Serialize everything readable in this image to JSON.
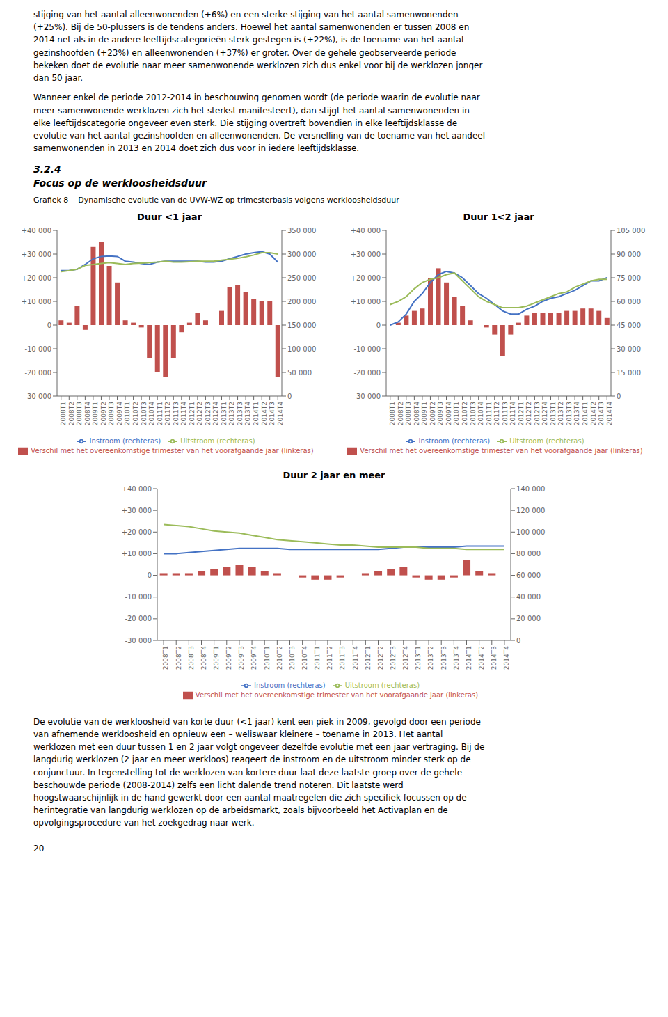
{
  "title": "Grafiek 8    Dynamische evolutie van de UVW-WZ op trimesterbasis volgens werkloosheidsduur",
  "annotations": [
    "stijging van het aantal alleenwonenden (+6%) en een sterke stijging van het aantal samenwonenden\n(+25%). Bij de 50-plussers is de tendens anders. Hoewel het aantal samenwonenden er tussen 2008 en\n2014 net als in de andere leeftijdscategorieën sterk gestegen is (+22%), is de toename van het aantal\ngezinshoofden (+23%) en alleenwonenden (+37%) er groter. Over de gehele geobserveerde periode\nbekeken doet de evolutie naar meer samenwonende werklozen zich dus enkel voor bij de werklozen jonger\ndan 50 jaar.",
    "Wanneer enkel de periode 2012-2014 in beschouwing genomen wordt (de periode waarin de evolutie naar\nmeer samenwonende werklozen zich het sterkst manifesteert), dan stijgt het aantal samenwonenden in\nelke leeftijdscategorie ongeveer even sterk. Die stijging overtreft bovendien in elke leeftijdsklasse de\nevolutie van het aantal gezinshoofden en alleenwonenden. De versnelling van de toename van het aandeel\nsamenwonenden in 2013 en 2014 doet zich dus voor in iedere leeftijdsklasse.",
    "3.2.4",
    "Focus op de werkloosheidsduur",
    "De evolutie van de werkloosheid van korte duur (<1 jaar) kent een piek in 2009, gevolgd door een periode\nvan afnemende werkloosheid en opnieuw een – weliswaar kleinere – toename in 2013. Het aantal\nwerklozen met een duur tussen 1 en 2 jaar volgt ongeveer dezelfde evolutie met een jaar vertraging. Bij de\nlangdurig werklozen (2 jaar en meer werkloos) reageert de instroom en de uitstroom minder sterk op de\nconjunctuur. In tegenstelling tot de werklozen van kortere duur laat deze laatste groep over de gehele\nbeschouwde periode (2008-2014) zelfs een licht dalende trend noteren. Dit laatste werd\nhoogstwaarschijnlijk in de hand gewerkt door een aantal maatregelen die zich specifiek focussen op de\nherintegratie van langdurig werklozen op de arbeidsmarkt, zoals bijvoorbeeld het Activaplan en de\nopvolgingsprocedure van het zoekgedrag naar werk.",
    "20"
  ],
  "chart_data": [
    {
      "type": "bar",
      "title": "Duur <1 jaar",
      "categories": [
        "2008T1",
        "2008T2",
        "2008T3",
        "2008T4",
        "2009T1",
        "2009T2",
        "2009T3",
        "2009T4",
        "2010T1",
        "2010T2",
        "2010T3",
        "2010T4",
        "2011T1",
        "2011T2",
        "2011T3",
        "2011T4",
        "2012T1",
        "2012T2",
        "2012T3",
        "2012T4",
        "2013T1",
        "2013T2",
        "2013T3",
        "2013T4",
        "2014T1",
        "2014T2",
        "2014T3",
        "2014T4"
      ],
      "series": [
        {
          "name": "Verschil met het overeenkomstige trimester van het voorafgaande jaar (linkeras)",
          "type": "bar",
          "color": "#c0504d",
          "values": [
            2000,
            1000,
            8000,
            -2000,
            33000,
            35000,
            25000,
            18000,
            2000,
            1000,
            -1000,
            -14000,
            -20000,
            -22000,
            -14000,
            -3000,
            1000,
            5000,
            2000,
            0,
            6000,
            16000,
            17000,
            14000,
            11000,
            10000,
            10000,
            -22000
          ]
        },
        {
          "name": "Instroom (rechteras)",
          "type": "line",
          "axis": "y2",
          "color": "#4472c4",
          "values": [
            265000,
            265000,
            268000,
            278000,
            290000,
            295000,
            296000,
            295000,
            285000,
            283000,
            280000,
            278000,
            283000,
            285000,
            285000,
            285000,
            285000,
            285000,
            283000,
            283000,
            285000,
            290000,
            295000,
            300000,
            303000,
            305000,
            300000,
            283000
          ]
        },
        {
          "name": "Uitstroom (rechteras)",
          "type": "line",
          "axis": "y2",
          "color": "#9bbb59",
          "values": [
            263000,
            265000,
            268000,
            276000,
            278000,
            280000,
            282000,
            280000,
            278000,
            280000,
            281000,
            282000,
            283000,
            285000,
            283000,
            283000,
            284000,
            285000,
            285000,
            285000,
            287000,
            289000,
            291000,
            294000,
            298000,
            303000,
            303000,
            300000
          ]
        }
      ],
      "ylim": [
        -30000,
        40000
      ],
      "yticks": [
        {
          "value": -30000,
          "label": "-30 000"
        },
        {
          "value": -20000,
          "label": "-20 000"
        },
        {
          "value": -10000,
          "label": "-10 000"
        },
        0,
        {
          "value": 10000,
          "label": "+10 000"
        },
        {
          "value": 20000,
          "label": "+20 000"
        },
        {
          "value": 30000,
          "label": "+30 000"
        },
        {
          "value": 40000,
          "label": "+40 000"
        }
      ],
      "y2lim": [
        0,
        350000
      ],
      "y2ticks": [
        0,
        {
          "value": 50000,
          "label": "50 000"
        },
        {
          "value": 100000,
          "label": "100 000"
        },
        {
          "value": 150000,
          "label": "150 000"
        },
        {
          "value": 200000,
          "label": "200 000"
        },
        {
          "value": 250000,
          "label": "250 000"
        },
        {
          "value": 300000,
          "label": "300 000"
        },
        {
          "value": 350000,
          "label": "350 000"
        }
      ],
      "grid": false,
      "legend": "bottom"
    },
    {
      "type": "bar",
      "title": "Duur 1<2 jaar",
      "categories": [
        "2008T1",
        "2008T2",
        "2008T3",
        "2008T4",
        "2009T1",
        "2009T2",
        "2009T3",
        "2009T4",
        "2010T1",
        "2010T2",
        "2010T3",
        "2010T4",
        "2011T1",
        "2011T2",
        "2011T3",
        "2011T4",
        "2012T1",
        "2012T2",
        "2012T3",
        "2012T4",
        "2013T1",
        "2013T2",
        "2013T3",
        "2013T4",
        "2014T1",
        "2014T2",
        "2014T3",
        "2014T4"
      ],
      "series": [
        {
          "name": "Verschil met het overeenkomstige trimester van het voorafgaande jaar (linkeras)",
          "type": "bar",
          "color": "#c0504d",
          "values": [
            0,
            1000,
            4000,
            6000,
            7000,
            20000,
            24000,
            18000,
            12000,
            8000,
            2000,
            0,
            -1000,
            -4000,
            -13000,
            -4000,
            1000,
            4000,
            5000,
            5000,
            5000,
            5000,
            6000,
            6000,
            7000,
            7000,
            6000,
            3000
          ]
        },
        {
          "name": "Instroom (rechteras)",
          "type": "line",
          "axis": "y2",
          "color": "#4472c4",
          "values": [
            45000,
            47000,
            52000,
            60000,
            65000,
            72000,
            77000,
            79000,
            78000,
            75000,
            70000,
            65000,
            62000,
            58000,
            54000,
            52000,
            52000,
            55000,
            57000,
            60000,
            62000,
            63000,
            65000,
            67000,
            70000,
            73000,
            73000,
            75000
          ]
        },
        {
          "name": "Uitstroom (rechteras)",
          "type": "line",
          "axis": "y2",
          "color": "#9bbb59",
          "values": [
            58000,
            60000,
            63000,
            68000,
            72000,
            74000,
            75000,
            77000,
            78000,
            73000,
            68000,
            63000,
            60000,
            58000,
            56000,
            56000,
            56000,
            57000,
            59000,
            61000,
            63000,
            65000,
            66000,
            69000,
            71000,
            73000,
            74000,
            74000
          ]
        }
      ],
      "ylim": [
        -30000,
        40000
      ],
      "yticks": [
        {
          "value": -30000,
          "label": "-30 000"
        },
        {
          "value": -20000,
          "label": "-20 000"
        },
        {
          "value": -10000,
          "label": "-10 000"
        },
        0,
        {
          "value": 10000,
          "label": "+10 000"
        },
        {
          "value": 20000,
          "label": "+20 000"
        },
        {
          "value": 30000,
          "label": "+30 000"
        },
        {
          "value": 40000,
          "label": "+40 000"
        }
      ],
      "y2lim": [
        0,
        105000
      ],
      "y2ticks": [
        0,
        {
          "value": 15000,
          "label": "15 000"
        },
        {
          "value": 30000,
          "label": "30 000"
        },
        {
          "value": 45000,
          "label": "45 000"
        },
        {
          "value": 60000,
          "label": "60 000"
        },
        {
          "value": 75000,
          "label": "75 000"
        },
        {
          "value": 90000,
          "label": "90 000"
        },
        {
          "value": 105000,
          "label": "105 000"
        }
      ],
      "grid": false,
      "legend": "bottom"
    },
    {
      "type": "bar",
      "title": "Duur 2 jaar en meer",
      "categories": [
        "2008T1",
        "2008T2",
        "2008T3",
        "2008T4",
        "2009T1",
        "2009T2",
        "2009T3",
        "2009T4",
        "2010T1",
        "2010T2",
        "2010T3",
        "2010T4",
        "2011T1",
        "2011T2",
        "2011T3",
        "2011T4",
        "2012T1",
        "2012T2",
        "2012T3",
        "2012T4",
        "2013T1",
        "2013T2",
        "2013T3",
        "2013T4",
        "2014T1",
        "2014T2",
        "2014T3",
        "2014T4"
      ],
      "series": [
        {
          "name": "Verschil met het overeenkomstige trimester van het voorafgaande jaar (linkeras)",
          "type": "bar",
          "color": "#c0504d",
          "values": [
            1000,
            1000,
            1000,
            2000,
            3000,
            4000,
            5000,
            4000,
            2000,
            1000,
            0,
            -1000,
            -2000,
            -2000,
            -1000,
            0,
            1000,
            2000,
            3000,
            4000,
            -1000,
            -2000,
            -2000,
            -1000,
            7000,
            2000,
            1000,
            0
          ]
        },
        {
          "name": "Instroom (rechteras)",
          "type": "line",
          "axis": "y2",
          "color": "#4472c4",
          "values": [
            80000,
            80000,
            81000,
            82000,
            83000,
            84000,
            85000,
            85000,
            85000,
            85000,
            84000,
            84000,
            84000,
            84000,
            84000,
            84000,
            84000,
            84000,
            85000,
            86000,
            86000,
            86000,
            86000,
            86000,
            87000,
            87000,
            87000,
            87000
          ]
        },
        {
          "name": "Uitstroom (rechteras)",
          "type": "line",
          "axis": "y2",
          "color": "#9bbb59",
          "values": [
            107000,
            106000,
            105000,
            103000,
            101000,
            100000,
            99000,
            97000,
            95000,
            93000,
            92000,
            91000,
            90000,
            89000,
            88000,
            88000,
            87000,
            86000,
            86000,
            86000,
            86000,
            85000,
            85000,
            85000,
            84000,
            84000,
            84000,
            84000
          ]
        }
      ],
      "ylim": [
        -30000,
        40000
      ],
      "yticks": [
        {
          "value": -30000,
          "label": "-30 000"
        },
        {
          "value": -20000,
          "label": "-20 000"
        },
        {
          "value": -10000,
          "label": "-10 000"
        },
        0,
        {
          "value": 10000,
          "label": "+10 000"
        },
        {
          "value": 20000,
          "label": "+20 000"
        },
        {
          "value": 30000,
          "label": "+30 000"
        },
        {
          "value": 40000,
          "label": "+40 000"
        }
      ],
      "y2lim": [
        0,
        140000
      ],
      "y2ticks": [
        0,
        {
          "value": 20000,
          "label": "20 000"
        },
        {
          "value": 40000,
          "label": "40 000"
        },
        {
          "value": 60000,
          "label": "60 000"
        },
        {
          "value": 80000,
          "label": "80 000"
        },
        {
          "value": 100000,
          "label": "100 000"
        },
        {
          "value": 120000,
          "label": "120 000"
        },
        {
          "value": 140000,
          "label": "140 000"
        }
      ],
      "grid": false,
      "legend": "bottom"
    }
  ]
}
